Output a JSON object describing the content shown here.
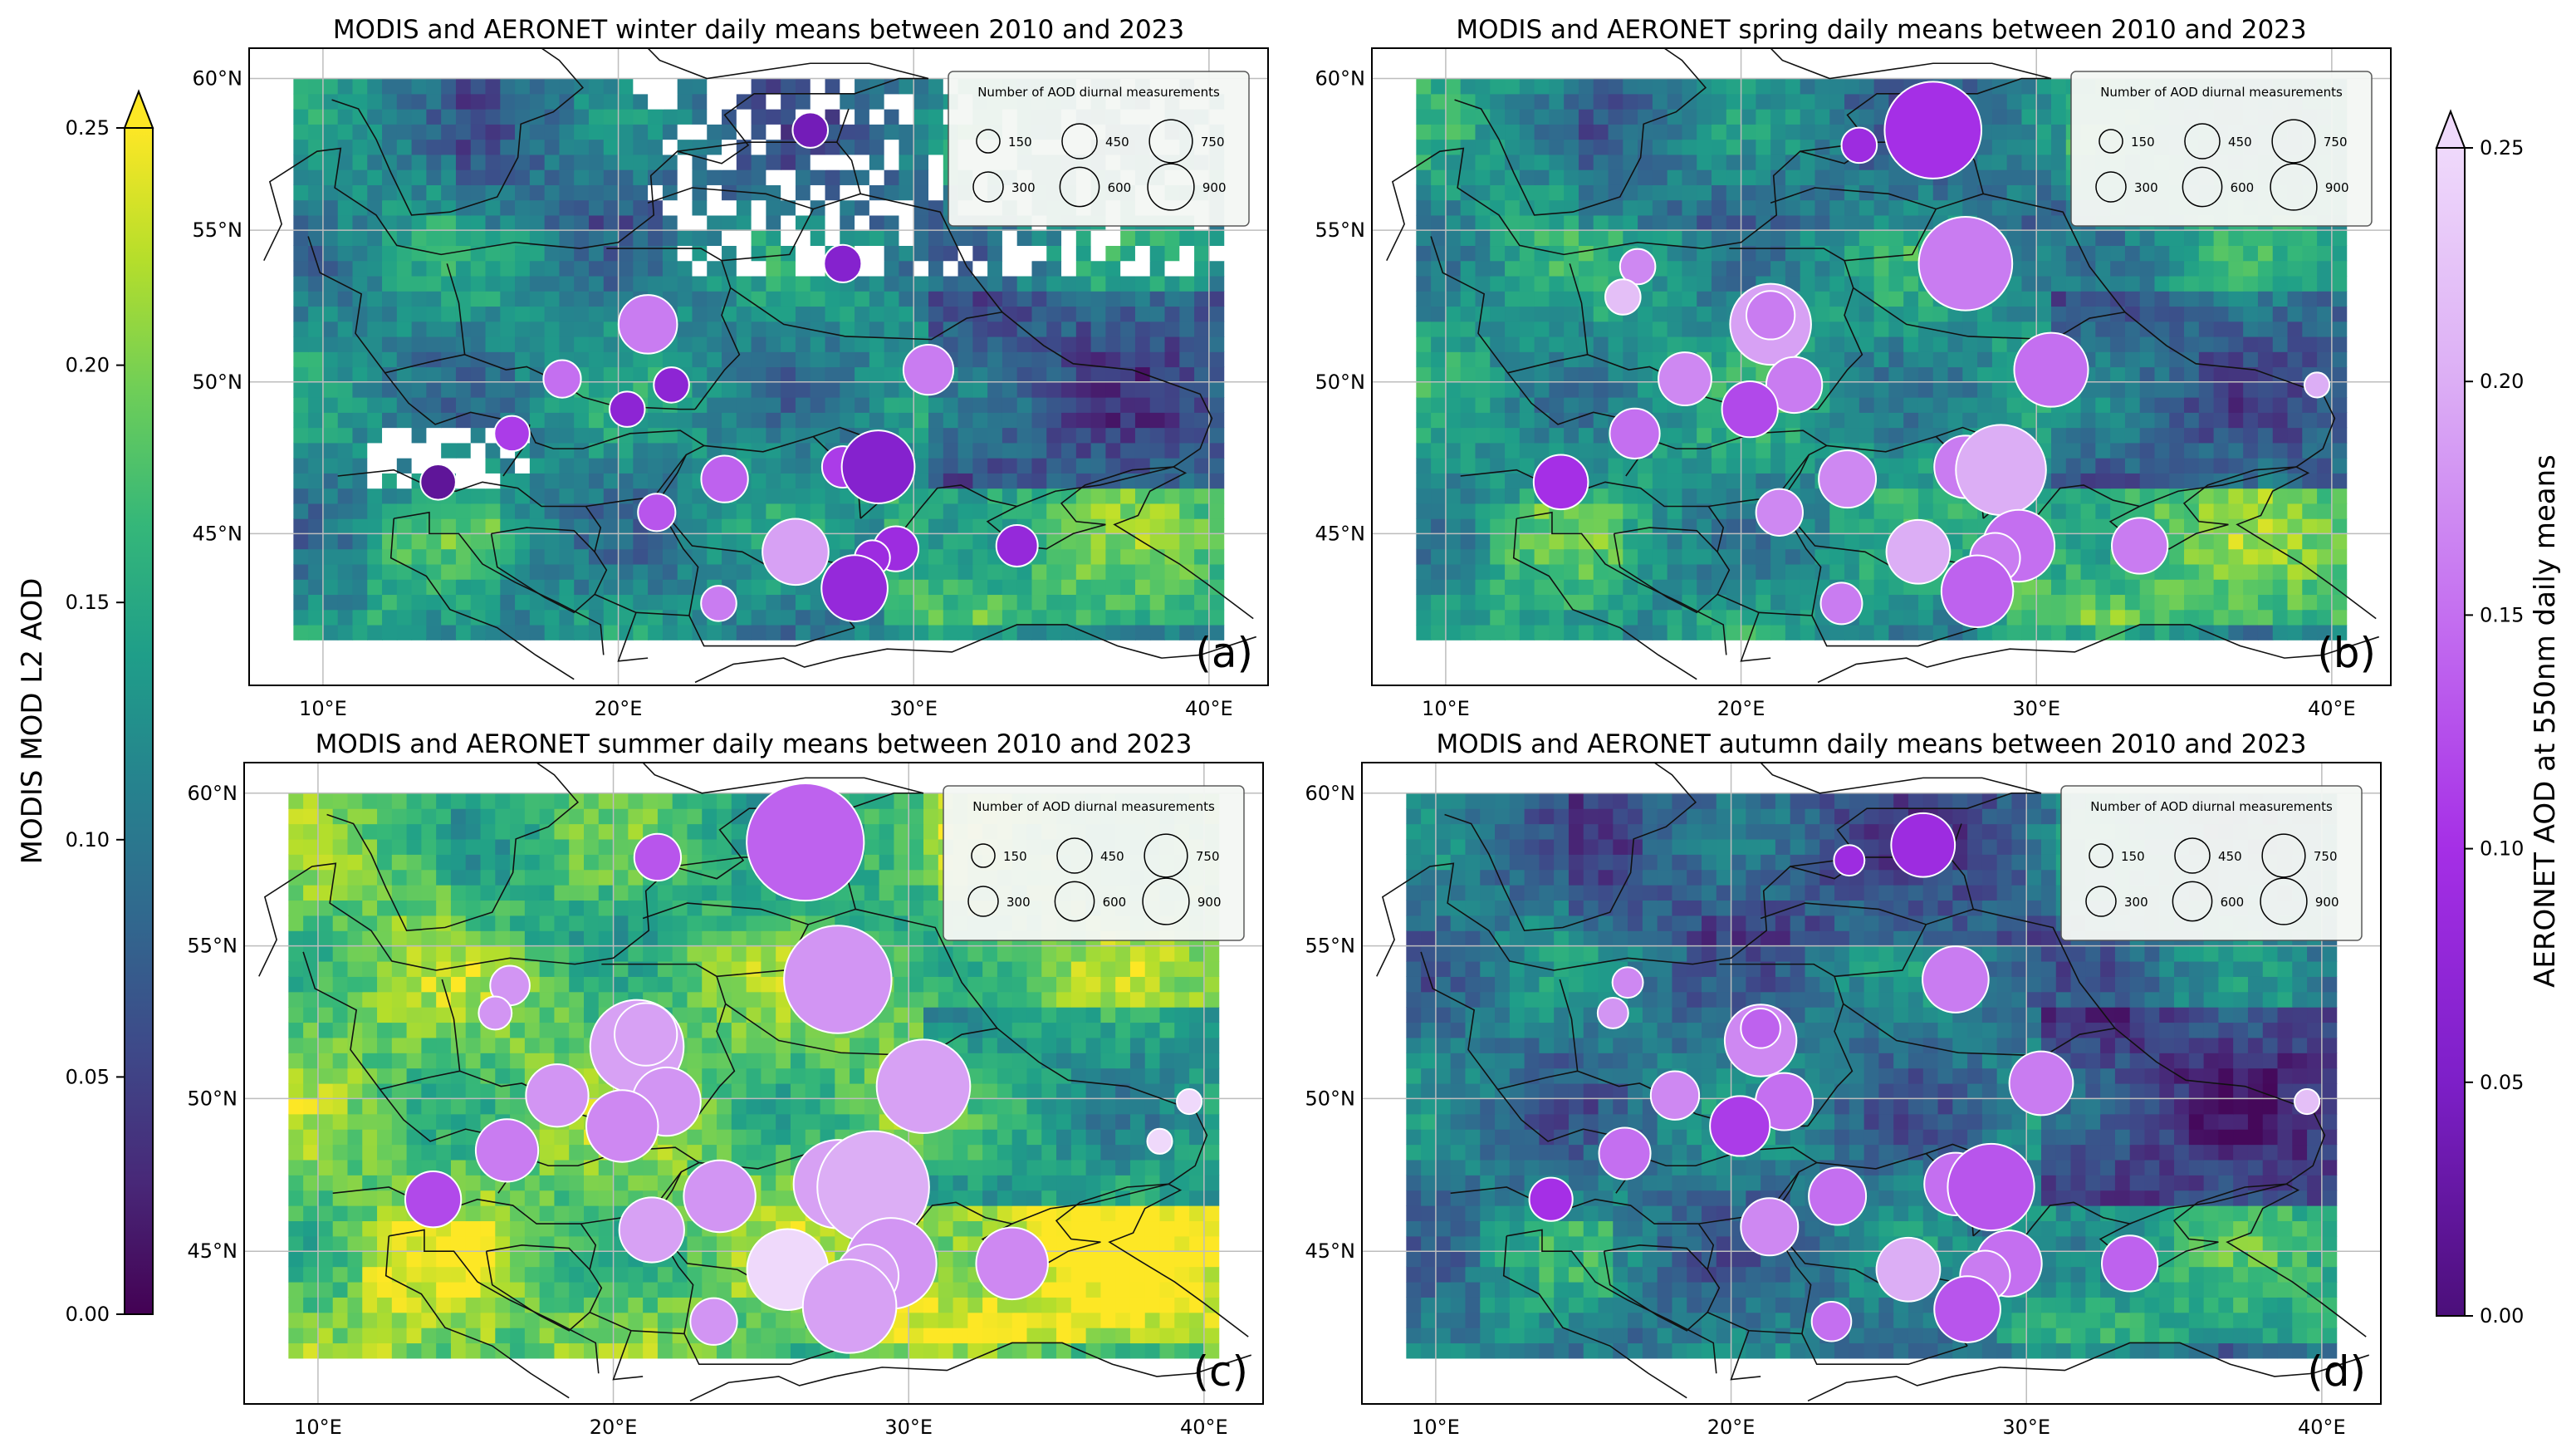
{
  "figure": {
    "left_colorbar": {
      "label": "MODIS MOD L2 AOD",
      "ticks": [
        "0.00",
        "0.05",
        "0.10",
        "0.15",
        "0.20",
        "0.25"
      ],
      "tick_values": [
        0,
        0.05,
        0.1,
        0.15,
        0.2,
        0.25
      ],
      "range": [
        0,
        0.25
      ],
      "extend": "max",
      "colormap": "viridis",
      "colors": [
        "#440154",
        "#482878",
        "#3e4989",
        "#31688e",
        "#26828e",
        "#1f9e89",
        "#35b779",
        "#6ece58",
        "#b5de2b",
        "#fde725"
      ]
    },
    "right_colorbar": {
      "label": "AERONET AOD at 550nm daily means",
      "ticks": [
        "0.00",
        "0.05",
        "0.10",
        "0.15",
        "0.20",
        "0.25"
      ],
      "tick_values": [
        0,
        0.05,
        0.1,
        0.15,
        0.2,
        0.25
      ],
      "range": [
        0,
        0.25
      ],
      "extend": "max",
      "colormap": "purple",
      "colors": [
        "#4b0f7a",
        "#7d1fc8",
        "#a52fe6",
        "#c46ff0",
        "#dcaef5",
        "#efd9fb"
      ]
    }
  },
  "chart_data": [
    {
      "type": "scatter",
      "panel": "(a)",
      "season": "winter",
      "title": "MODIS and AERONET winter daily means between 2010 and 2023",
      "xlim": [
        7.5,
        42
      ],
      "ylim": [
        40,
        61
      ],
      "x_ticks": [
        "10°E",
        "20°E",
        "30°E",
        "40°E"
      ],
      "x_tick_values": [
        10,
        20,
        30,
        40
      ],
      "y_ticks": [
        "45°N",
        "50°N",
        "55°N",
        "60°N"
      ],
      "y_tick_values": [
        45,
        50,
        55,
        60
      ],
      "background_mean_aod": 0.12,
      "legend": {
        "title": "Number of AOD diurnal measurements",
        "entries": [
          "150",
          "300",
          "450",
          "600",
          "750",
          "900"
        ],
        "values": [
          150,
          300,
          450,
          600,
          750,
          900
        ]
      },
      "stations": [
        {
          "lon": 26.5,
          "lat": 58.3,
          "n": 80,
          "aod": 0.04
        },
        {
          "lon": 27.6,
          "lat": 53.9,
          "n": 90,
          "aod": 0.06
        },
        {
          "lon": 21.0,
          "lat": 51.9,
          "n": 220,
          "aod": 0.16
        },
        {
          "lon": 30.5,
          "lat": 50.4,
          "n": 160,
          "aod": 0.16
        },
        {
          "lon": 18.1,
          "lat": 50.1,
          "n": 90,
          "aod": 0.15
        },
        {
          "lon": 20.3,
          "lat": 49.1,
          "n": 80,
          "aod": 0.07
        },
        {
          "lon": 21.8,
          "lat": 49.9,
          "n": 80,
          "aod": 0.07
        },
        {
          "lon": 16.4,
          "lat": 48.3,
          "n": 80,
          "aod": 0.11
        },
        {
          "lon": 13.9,
          "lat": 46.7,
          "n": 80,
          "aod": 0.02
        },
        {
          "lon": 23.6,
          "lat": 46.8,
          "n": 140,
          "aod": 0.14
        },
        {
          "lon": 27.6,
          "lat": 47.2,
          "n": 110,
          "aod": 0.11
        },
        {
          "lon": 28.8,
          "lat": 47.2,
          "n": 340,
          "aod": 0.06
        },
        {
          "lon": 21.3,
          "lat": 45.7,
          "n": 90,
          "aod": 0.13
        },
        {
          "lon": 26.0,
          "lat": 44.4,
          "n": 280,
          "aod": 0.19
        },
        {
          "lon": 29.4,
          "lat": 44.5,
          "n": 130,
          "aod": 0.09
        },
        {
          "lon": 28.6,
          "lat": 44.2,
          "n": 80,
          "aod": 0.09
        },
        {
          "lon": 33.5,
          "lat": 44.6,
          "n": 110,
          "aod": 0.08
        },
        {
          "lon": 28.0,
          "lat": 43.2,
          "n": 280,
          "aod": 0.08
        },
        {
          "lon": 23.4,
          "lat": 42.7,
          "n": 80,
          "aod": 0.16
        }
      ]
    },
    {
      "type": "scatter",
      "panel": "(b)",
      "season": "spring",
      "title": "MODIS and AERONET spring daily means between 2010 and 2023",
      "xlim": [
        7.5,
        42
      ],
      "ylim": [
        40,
        61
      ],
      "x_ticks": [
        "10°E",
        "20°E",
        "30°E",
        "40°E"
      ],
      "x_tick_values": [
        10,
        20,
        30,
        40
      ],
      "y_ticks": [
        "45°N",
        "50°N",
        "55°N",
        "60°N"
      ],
      "y_tick_values": [
        45,
        50,
        55,
        60
      ],
      "background_mean_aod": 0.13,
      "legend": {
        "title": "Number of AOD diurnal measurements",
        "entries": [
          "150",
          "300",
          "450",
          "600",
          "750",
          "900"
        ],
        "values": [
          150,
          300,
          450,
          600,
          750,
          900
        ]
      },
      "stations": [
        {
          "lon": 26.5,
          "lat": 58.3,
          "n": 600,
          "aod": 0.1
        },
        {
          "lon": 24.0,
          "lat": 57.8,
          "n": 80,
          "aod": 0.09
        },
        {
          "lon": 16.5,
          "lat": 53.8,
          "n": 80,
          "aod": 0.17
        },
        {
          "lon": 27.6,
          "lat": 53.9,
          "n": 560,
          "aod": 0.16
        },
        {
          "lon": 16.0,
          "lat": 52.8,
          "n": 80,
          "aod": 0.22
        },
        {
          "lon": 21.0,
          "lat": 51.9,
          "n": 420,
          "aod": 0.19
        },
        {
          "lon": 21.0,
          "lat": 52.2,
          "n": 150,
          "aod": 0.16
        },
        {
          "lon": 30.5,
          "lat": 50.4,
          "n": 350,
          "aod": 0.15
        },
        {
          "lon": 18.1,
          "lat": 50.1,
          "n": 180,
          "aod": 0.17
        },
        {
          "lon": 21.8,
          "lat": 49.9,
          "n": 200,
          "aod": 0.16
        },
        {
          "lon": 20.3,
          "lat": 49.1,
          "n": 200,
          "aod": 0.12
        },
        {
          "lon": 16.4,
          "lat": 48.3,
          "n": 160,
          "aod": 0.15
        },
        {
          "lon": 13.9,
          "lat": 46.7,
          "n": 190,
          "aod": 0.1
        },
        {
          "lon": 23.6,
          "lat": 46.8,
          "n": 210,
          "aod": 0.17
        },
        {
          "lon": 27.6,
          "lat": 47.2,
          "n": 250,
          "aod": 0.16
        },
        {
          "lon": 28.8,
          "lat": 47.1,
          "n": 520,
          "aod": 0.2
        },
        {
          "lon": 21.3,
          "lat": 45.7,
          "n": 140,
          "aod": 0.17
        },
        {
          "lon": 26.0,
          "lat": 44.4,
          "n": 260,
          "aod": 0.2
        },
        {
          "lon": 29.4,
          "lat": 44.6,
          "n": 330,
          "aod": 0.15
        },
        {
          "lon": 28.6,
          "lat": 44.2,
          "n": 160,
          "aod": 0.16
        },
        {
          "lon": 33.5,
          "lat": 44.6,
          "n": 200,
          "aod": 0.16
        },
        {
          "lon": 28.0,
          "lat": 43.1,
          "n": 330,
          "aod": 0.14
        },
        {
          "lon": 23.4,
          "lat": 42.7,
          "n": 110,
          "aod": 0.16
        },
        {
          "lon": 39.5,
          "lat": 49.9,
          "n": 40,
          "aod": 0.2
        }
      ]
    },
    {
      "type": "scatter",
      "panel": "(c)",
      "season": "summer",
      "title": "MODIS and AERONET summer daily means between 2010 and 2023",
      "xlim": [
        7.5,
        42
      ],
      "ylim": [
        40,
        61
      ],
      "x_ticks": [
        "10°E",
        "20°E",
        "30°E",
        "40°E"
      ],
      "x_tick_values": [
        10,
        20,
        30,
        40
      ],
      "y_ticks": [
        "45°N",
        "50°N",
        "55°N",
        "60°N"
      ],
      "y_tick_values": [
        45,
        50,
        55,
        60
      ],
      "background_mean_aod": 0.19,
      "legend": {
        "title": "Number of AOD diurnal measurements",
        "entries": [
          "150",
          "300",
          "450",
          "600",
          "750",
          "900"
        ],
        "values": [
          150,
          300,
          450,
          600,
          750,
          900
        ]
      },
      "stations": [
        {
          "lon": 26.5,
          "lat": 58.4,
          "n": 880,
          "aod": 0.14
        },
        {
          "lon": 21.5,
          "lat": 57.9,
          "n": 140,
          "aod": 0.13
        },
        {
          "lon": 16.5,
          "lat": 53.7,
          "n": 100,
          "aod": 0.18
        },
        {
          "lon": 27.6,
          "lat": 53.9,
          "n": 740,
          "aod": 0.18
        },
        {
          "lon": 16.0,
          "lat": 52.8,
          "n": 70,
          "aod": 0.18
        },
        {
          "lon": 20.8,
          "lat": 51.7,
          "n": 560,
          "aod": 0.19
        },
        {
          "lon": 21.1,
          "lat": 52.1,
          "n": 250,
          "aod": 0.19
        },
        {
          "lon": 30.5,
          "lat": 50.4,
          "n": 560,
          "aod": 0.19
        },
        {
          "lon": 18.1,
          "lat": 50.1,
          "n": 250,
          "aod": 0.18
        },
        {
          "lon": 21.8,
          "lat": 49.9,
          "n": 300,
          "aod": 0.18
        },
        {
          "lon": 20.3,
          "lat": 49.1,
          "n": 330,
          "aod": 0.17
        },
        {
          "lon": 16.4,
          "lat": 48.3,
          "n": 250,
          "aod": 0.16
        },
        {
          "lon": 13.9,
          "lat": 46.7,
          "n": 200,
          "aod": 0.12
        },
        {
          "lon": 23.6,
          "lat": 46.8,
          "n": 330,
          "aod": 0.18
        },
        {
          "lon": 27.6,
          "lat": 47.2,
          "n": 500,
          "aod": 0.19
        },
        {
          "lon": 28.8,
          "lat": 47.1,
          "n": 800,
          "aod": 0.2
        },
        {
          "lon": 21.3,
          "lat": 45.7,
          "n": 270,
          "aod": 0.19
        },
        {
          "lon": 25.9,
          "lat": 44.4,
          "n": 420,
          "aod": 0.25
        },
        {
          "lon": 29.4,
          "lat": 44.6,
          "n": 530,
          "aod": 0.18
        },
        {
          "lon": 28.6,
          "lat": 44.2,
          "n": 250,
          "aod": 0.19
        },
        {
          "lon": 33.5,
          "lat": 44.6,
          "n": 330,
          "aod": 0.17
        },
        {
          "lon": 28.0,
          "lat": 43.2,
          "n": 560,
          "aod": 0.19
        },
        {
          "lon": 23.4,
          "lat": 42.7,
          "n": 140,
          "aod": 0.18
        },
        {
          "lon": 39.5,
          "lat": 49.9,
          "n": 40,
          "aod": 0.25
        },
        {
          "lon": 38.5,
          "lat": 48.6,
          "n": 40,
          "aod": 0.25
        }
      ]
    },
    {
      "type": "scatter",
      "panel": "(d)",
      "season": "autumn",
      "title": "MODIS and AERONET autumn daily means between 2010 and 2023",
      "xlim": [
        7.5,
        42
      ],
      "ylim": [
        40,
        61
      ],
      "x_ticks": [
        "10°E",
        "20°E",
        "30°E",
        "40°E"
      ],
      "x_tick_values": [
        10,
        20,
        30,
        40
      ],
      "y_ticks": [
        "45°N",
        "50°N",
        "55°N",
        "60°N"
      ],
      "y_tick_values": [
        45,
        50,
        55,
        60
      ],
      "background_mean_aod": 0.1,
      "legend": {
        "title": "Number of AOD diurnal measurements",
        "entries": [
          "150",
          "300",
          "450",
          "600",
          "750",
          "900"
        ],
        "values": [
          150,
          300,
          450,
          600,
          750,
          900
        ]
      },
      "stations": [
        {
          "lon": 26.5,
          "lat": 58.3,
          "n": 260,
          "aod": 0.09
        },
        {
          "lon": 24.0,
          "lat": 57.8,
          "n": 60,
          "aod": 0.09
        },
        {
          "lon": 16.5,
          "lat": 53.8,
          "n": 60,
          "aod": 0.17
        },
        {
          "lon": 27.6,
          "lat": 53.9,
          "n": 280,
          "aod": 0.16
        },
        {
          "lon": 16.0,
          "lat": 52.8,
          "n": 60,
          "aod": 0.18
        },
        {
          "lon": 21.0,
          "lat": 51.9,
          "n": 330,
          "aod": 0.17
        },
        {
          "lon": 21.0,
          "lat": 52.3,
          "n": 100,
          "aod": 0.14
        },
        {
          "lon": 30.5,
          "lat": 50.5,
          "n": 260,
          "aod": 0.16
        },
        {
          "lon": 18.1,
          "lat": 50.1,
          "n": 150,
          "aod": 0.17
        },
        {
          "lon": 21.8,
          "lat": 49.9,
          "n": 210,
          "aod": 0.15
        },
        {
          "lon": 20.3,
          "lat": 49.1,
          "n": 230,
          "aod": 0.11
        },
        {
          "lon": 16.4,
          "lat": 48.2,
          "n": 170,
          "aod": 0.15
        },
        {
          "lon": 13.9,
          "lat": 46.7,
          "n": 120,
          "aod": 0.1
        },
        {
          "lon": 23.6,
          "lat": 46.8,
          "n": 210,
          "aod": 0.15
        },
        {
          "lon": 27.6,
          "lat": 47.2,
          "n": 250,
          "aod": 0.15
        },
        {
          "lon": 28.8,
          "lat": 47.1,
          "n": 480,
          "aod": 0.13
        },
        {
          "lon": 21.3,
          "lat": 45.8,
          "n": 210,
          "aod": 0.17
        },
        {
          "lon": 26.0,
          "lat": 44.4,
          "n": 260,
          "aod": 0.2
        },
        {
          "lon": 29.4,
          "lat": 44.6,
          "n": 280,
          "aod": 0.15
        },
        {
          "lon": 28.6,
          "lat": 44.2,
          "n": 160,
          "aod": 0.16
        },
        {
          "lon": 33.5,
          "lat": 44.6,
          "n": 200,
          "aod": 0.14
        },
        {
          "lon": 28.0,
          "lat": 43.1,
          "n": 280,
          "aod": 0.13
        },
        {
          "lon": 23.4,
          "lat": 42.7,
          "n": 100,
          "aod": 0.15
        },
        {
          "lon": 39.5,
          "lat": 49.9,
          "n": 40,
          "aod": 0.22
        }
      ]
    }
  ]
}
